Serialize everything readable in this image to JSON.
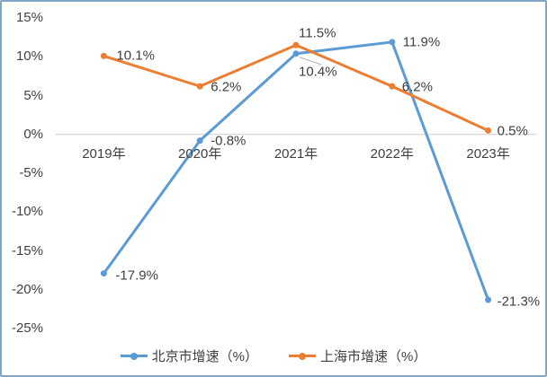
{
  "chart_data": {
    "type": "line",
    "categories": [
      "2019年",
      "2020年",
      "2021年",
      "2022年",
      "2023年"
    ],
    "series": [
      {
        "name": "北京市增速（%）",
        "color": "#5B9BD5",
        "values": [
          -17.9,
          -0.8,
          10.4,
          11.9,
          -21.3
        ],
        "labels": [
          "-17.9%",
          "-0.8%",
          "10.4%",
          "11.9%",
          "-21.3%"
        ],
        "label_dx": [
          13,
          12,
          3,
          12,
          10
        ],
        "label_dy": [
          2,
          0,
          20,
          0,
          2
        ],
        "leader_line_index": 2
      },
      {
        "name": "上海市增速（%）",
        "color": "#ED7D31",
        "values": [
          10.1,
          6.2,
          11.5,
          6.2,
          0.5
        ],
        "labels": [
          "10.1%",
          "6.2%",
          "11.5%",
          "6.2%",
          "0.5%"
        ],
        "label_dx": [
          14,
          12,
          3,
          11,
          10
        ],
        "label_dy": [
          0,
          1,
          -13,
          1,
          1
        ],
        "leader_line_index": null
      }
    ],
    "y_ticks": [
      {
        "value": 15,
        "label": "15%"
      },
      {
        "value": 10,
        "label": "10%"
      },
      {
        "value": 5,
        "label": "5%"
      },
      {
        "value": 0,
        "label": "0%"
      },
      {
        "value": -5,
        "label": "-5%"
      },
      {
        "value": -10,
        "label": "-10%"
      },
      {
        "value": -15,
        "label": "-15%"
      },
      {
        "value": -20,
        "label": "-20%"
      },
      {
        "value": -25,
        "label": "-25%"
      }
    ],
    "ylim": [
      -25,
      15
    ],
    "title": "",
    "xlabel": "",
    "ylabel": "",
    "grid": "zero-axis-line-only",
    "legend_position": "bottom"
  },
  "legend": [
    {
      "label": "北京市增速（%）",
      "color": "#5B9BD5"
    },
    {
      "label": "上海市增速（%）",
      "color": "#ED7D31"
    }
  ],
  "colors": {
    "series_beijing": "#5B9BD5",
    "series_shanghai": "#ED7D31",
    "zero_axis_line": "#D0CECE",
    "leader_line": "#A6A6A6",
    "frame_border": "#7FA6C7",
    "text": "#404040"
  }
}
